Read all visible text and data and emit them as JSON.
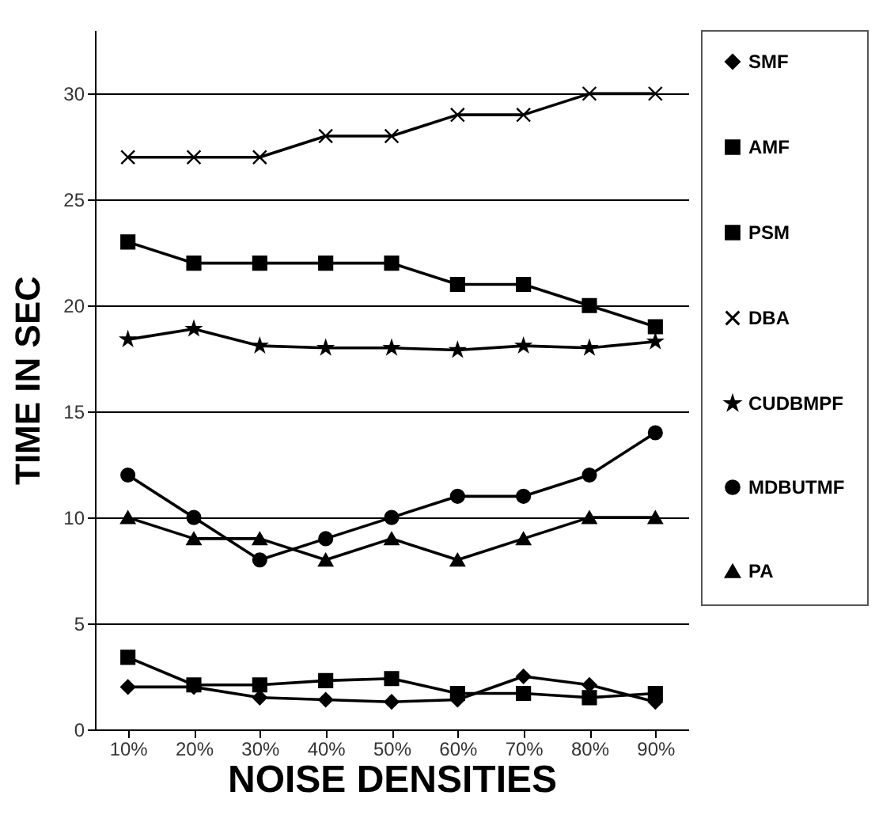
{
  "chart_data": {
    "type": "line",
    "xlabel": "NOISE DENSITIES",
    "ylabel": "TIME IN SEC",
    "categories": [
      "10%",
      "20%",
      "30%",
      "40%",
      "50%",
      "60%",
      "70%",
      "80%",
      "90%"
    ],
    "series": [
      {
        "name": "SMF",
        "color": "#000000",
        "marker": "diamond",
        "values": [
          2,
          2,
          1.5,
          1.4,
          1.3,
          1.4,
          2.5,
          2.1,
          1.3
        ]
      },
      {
        "name": "AMF",
        "color": "#000000",
        "marker": "square",
        "values": [
          23,
          22,
          22,
          22,
          22,
          21,
          21,
          20,
          19
        ]
      },
      {
        "name": "PSM",
        "color": "#000000",
        "marker": "square",
        "values": [
          3.4,
          2.1,
          2.1,
          2.3,
          2.4,
          1.7,
          1.7,
          1.5,
          1.7
        ]
      },
      {
        "name": "DBA",
        "color": "#000000",
        "marker": "cross",
        "values": [
          27,
          27,
          27,
          28,
          28,
          29,
          29,
          30,
          30
        ]
      },
      {
        "name": "CUDBMPF",
        "color": "#000000",
        "marker": "star",
        "values": [
          18.4,
          18.9,
          18.1,
          18,
          18,
          17.9,
          18.1,
          18,
          18.3
        ]
      },
      {
        "name": "MDBUTMF",
        "color": "#000000",
        "marker": "circle",
        "values": [
          12,
          10,
          8,
          9,
          10,
          11,
          11,
          12,
          14
        ]
      },
      {
        "name": "PA",
        "color": "#000000",
        "marker": "triangle",
        "values": [
          10,
          9,
          9,
          8,
          9,
          8,
          9,
          10,
          10
        ]
      }
    ],
    "ylim": [
      0,
      33
    ],
    "yticks": [
      0,
      5,
      10,
      15,
      20,
      25,
      30
    ],
    "grid": "y",
    "legend": "right",
    "line_style": "solid"
  }
}
